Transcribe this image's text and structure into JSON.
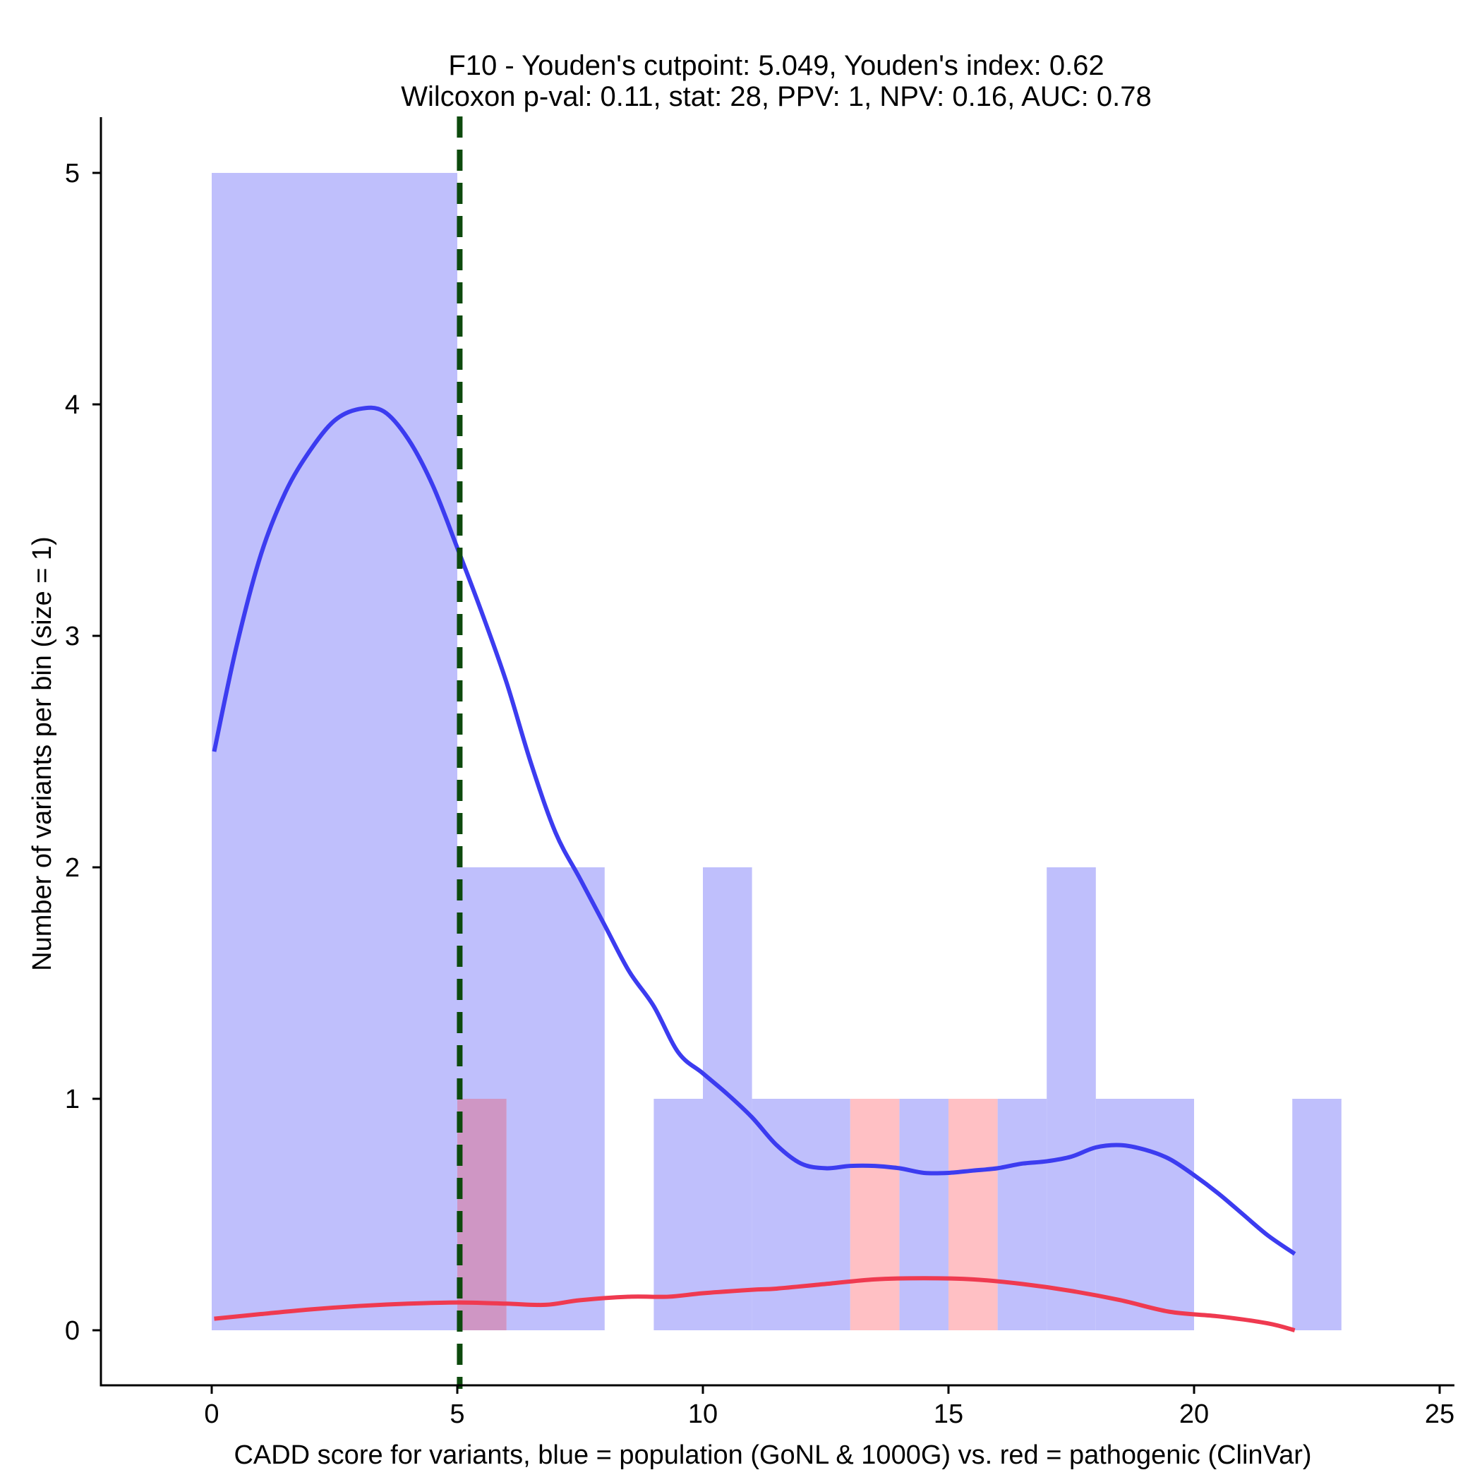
{
  "chart_data": {
    "type": "bar",
    "title_line1": "F10 - Youden's cutpoint: 5.049, Youden's index: 0.62",
    "title_line2": "Wilcoxon p-val: 0.11, stat: 28, PPV: 1, NPV: 0.16, AUC: 0.78",
    "xlabel": "CADD score for variants, blue = population (GoNL & 1000G) vs. red = pathogenic (ClinVar)",
    "ylabel": "Number of variants per bin (size = 1)",
    "xlim": [
      -2.2,
      25.3
    ],
    "ylim": [
      -0.25,
      5.25
    ],
    "xticks": [
      0,
      5,
      10,
      15,
      20,
      25
    ],
    "yticks": [
      0,
      1,
      2,
      3,
      4,
      5
    ],
    "cutpoint": 5.049,
    "colors": {
      "population_bar": "#bfbffc",
      "pathogenic_bar": "#ffc0c4",
      "overlap_bar": "#cf96c4",
      "population_curve": "#3c3cf0",
      "pathogenic_curve": "#ef3a50",
      "cutpoint_line": "#0d4a0d"
    },
    "series": [
      {
        "name": "population (GoNL & 1000G)",
        "bins": [
          {
            "x0": 0,
            "x1": 5,
            "count": 5
          },
          {
            "x0": 5,
            "x1": 8,
            "count": 2
          },
          {
            "x0": 9,
            "x1": 10,
            "count": 1
          },
          {
            "x0": 10,
            "x1": 11,
            "count": 2
          },
          {
            "x0": 11,
            "x1": 13,
            "count": 1
          },
          {
            "x0": 14,
            "x1": 15,
            "count": 1
          },
          {
            "x0": 16,
            "x1": 17,
            "count": 1
          },
          {
            "x0": 17,
            "x1": 18,
            "count": 2
          },
          {
            "x0": 18,
            "x1": 20,
            "count": 1
          },
          {
            "x0": 22,
            "x1": 23,
            "count": 1
          }
        ],
        "density": [
          [
            0.05,
            2.5
          ],
          [
            0.5,
            2.95
          ],
          [
            1,
            3.35
          ],
          [
            1.5,
            3.62
          ],
          [
            2,
            3.8
          ],
          [
            2.5,
            3.93
          ],
          [
            3,
            3.98
          ],
          [
            3.5,
            3.97
          ],
          [
            4,
            3.85
          ],
          [
            4.5,
            3.65
          ],
          [
            5,
            3.38
          ],
          [
            5.5,
            3.1
          ],
          [
            6,
            2.8
          ],
          [
            6.5,
            2.45
          ],
          [
            7,
            2.15
          ],
          [
            7.5,
            1.95
          ],
          [
            8,
            1.75
          ],
          [
            8.5,
            1.55
          ],
          [
            9,
            1.4
          ],
          [
            9.5,
            1.2
          ],
          [
            10,
            1.11
          ],
          [
            10.5,
            1.02
          ],
          [
            11,
            0.92
          ],
          [
            11.5,
            0.8
          ],
          [
            12,
            0.72
          ],
          [
            12.5,
            0.7
          ],
          [
            13,
            0.71
          ],
          [
            13.5,
            0.71
          ],
          [
            14,
            0.7
          ],
          [
            14.5,
            0.68
          ],
          [
            15,
            0.68
          ],
          [
            15.5,
            0.69
          ],
          [
            16,
            0.7
          ],
          [
            16.5,
            0.72
          ],
          [
            17,
            0.73
          ],
          [
            17.5,
            0.75
          ],
          [
            18,
            0.79
          ],
          [
            18.5,
            0.8
          ],
          [
            19,
            0.78
          ],
          [
            19.5,
            0.74
          ],
          [
            20,
            0.67
          ],
          [
            20.5,
            0.59
          ],
          [
            21,
            0.5
          ],
          [
            21.5,
            0.41
          ],
          [
            22.05,
            0.33
          ]
        ]
      },
      {
        "name": "pathogenic (ClinVar)",
        "bins": [
          {
            "x0": 5,
            "x1": 6,
            "count": 1
          },
          {
            "x0": 13,
            "x1": 14,
            "count": 1
          },
          {
            "x0": 15,
            "x1": 16,
            "count": 1
          }
        ],
        "density": [
          [
            0.05,
            0.05
          ],
          [
            1,
            0.07
          ],
          [
            2,
            0.09
          ],
          [
            3,
            0.105
          ],
          [
            4,
            0.115
          ],
          [
            5,
            0.12
          ],
          [
            6,
            0.115
          ],
          [
            6.8,
            0.11
          ],
          [
            7.5,
            0.13
          ],
          [
            8.5,
            0.145
          ],
          [
            9.3,
            0.145
          ],
          [
            10,
            0.16
          ],
          [
            11,
            0.175
          ],
          [
            11.5,
            0.18
          ],
          [
            12.5,
            0.2
          ],
          [
            13.5,
            0.22
          ],
          [
            14.5,
            0.225
          ],
          [
            15.5,
            0.22
          ],
          [
            16.5,
            0.2
          ],
          [
            17.5,
            0.17
          ],
          [
            18.5,
            0.13
          ],
          [
            19.5,
            0.08
          ],
          [
            20.5,
            0.06
          ],
          [
            21.5,
            0.03
          ],
          [
            22.05,
            0.0
          ]
        ]
      }
    ],
    "overlap_bins": [
      {
        "x0": 5,
        "x1": 6,
        "count": 1
      }
    ]
  }
}
